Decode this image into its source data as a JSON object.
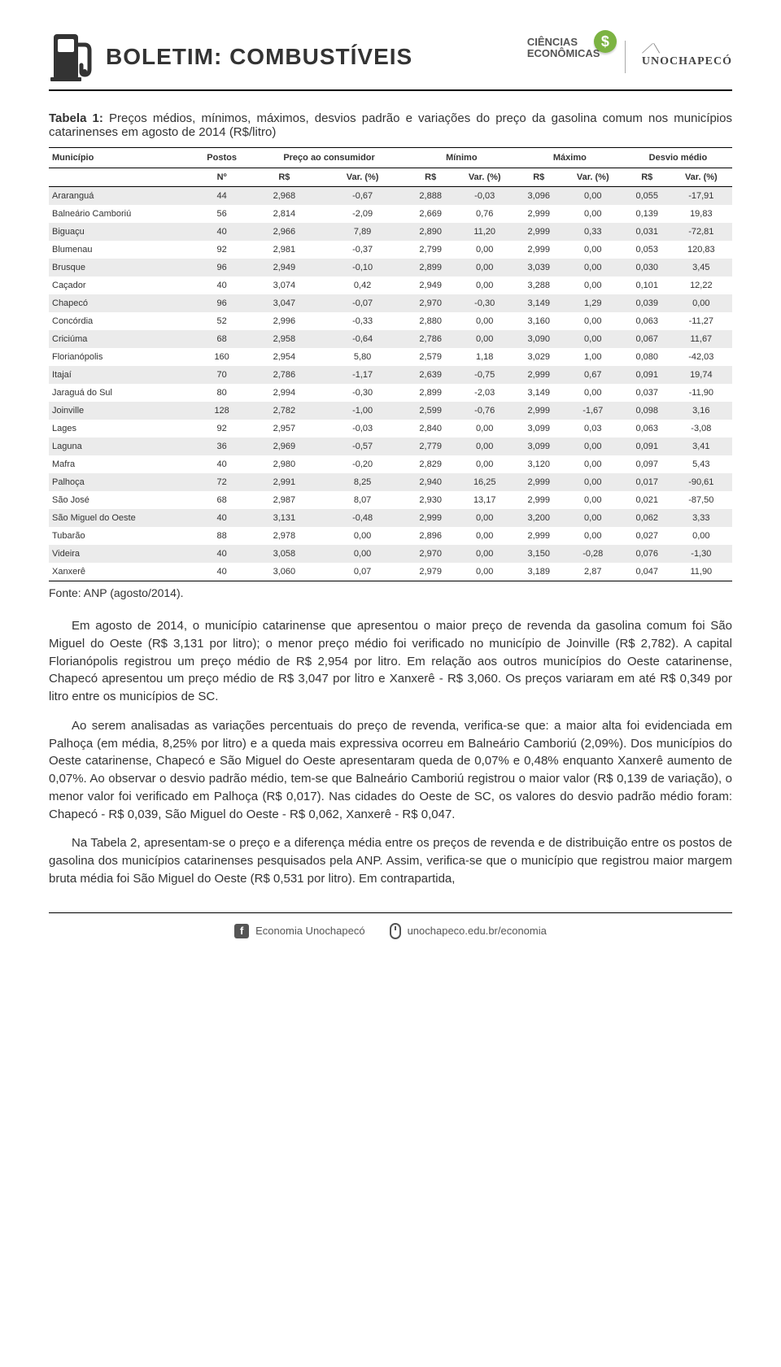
{
  "header": {
    "title": "BOLETIM: COMBUSTÍVEIS",
    "logo_ciencias_line1": "CIÊNCIAS",
    "logo_ciencias_line2": "ECONÔMICAS",
    "logo_ciencias_badge": "$",
    "logo_uno_swirl": "⟋⟍",
    "logo_uno_text": "UNOCHAPECÓ"
  },
  "caption": {
    "label": "Tabela 1:",
    "text": " Preços médios, mínimos, máximos, desvios padrão e variações do preço da gasolina comum nos municípios catarinenses em agosto de 2014 (R$/litro)"
  },
  "table": {
    "group_headers": [
      "Município",
      "Postos",
      "Preço ao consumidor",
      "Mínimo",
      "Máximo",
      "Desvio médio"
    ],
    "sub_headers": [
      "",
      "Nº",
      "R$",
      "Var. (%)",
      "R$",
      "Var. (%)",
      "R$",
      "Var. (%)",
      "R$",
      "Var. (%)"
    ],
    "rows": [
      [
        "Araranguá",
        "44",
        "2,968",
        "-0,67",
        "2,888",
        "-0,03",
        "3,096",
        "0,00",
        "0,055",
        "-17,91"
      ],
      [
        "Balneário Camboriú",
        "56",
        "2,814",
        "-2,09",
        "2,669",
        "0,76",
        "2,999",
        "0,00",
        "0,139",
        "19,83"
      ],
      [
        "Biguaçu",
        "40",
        "2,966",
        "7,89",
        "2,890",
        "11,20",
        "2,999",
        "0,33",
        "0,031",
        "-72,81"
      ],
      [
        "Blumenau",
        "92",
        "2,981",
        "-0,37",
        "2,799",
        "0,00",
        "2,999",
        "0,00",
        "0,053",
        "120,83"
      ],
      [
        "Brusque",
        "96",
        "2,949",
        "-0,10",
        "2,899",
        "0,00",
        "3,039",
        "0,00",
        "0,030",
        "3,45"
      ],
      [
        "Caçador",
        "40",
        "3,074",
        "0,42",
        "2,949",
        "0,00",
        "3,288",
        "0,00",
        "0,101",
        "12,22"
      ],
      [
        "Chapecó",
        "96",
        "3,047",
        "-0,07",
        "2,970",
        "-0,30",
        "3,149",
        "1,29",
        "0,039",
        "0,00"
      ],
      [
        "Concórdia",
        "52",
        "2,996",
        "-0,33",
        "2,880",
        "0,00",
        "3,160",
        "0,00",
        "0,063",
        "-11,27"
      ],
      [
        "Criciúma",
        "68",
        "2,958",
        "-0,64",
        "2,786",
        "0,00",
        "3,090",
        "0,00",
        "0,067",
        "11,67"
      ],
      [
        "Florianópolis",
        "160",
        "2,954",
        "5,80",
        "2,579",
        "1,18",
        "3,029",
        "1,00",
        "0,080",
        "-42,03"
      ],
      [
        "Itajaí",
        "70",
        "2,786",
        "-1,17",
        "2,639",
        "-0,75",
        "2,999",
        "0,67",
        "0,091",
        "19,74"
      ],
      [
        "Jaraguá do Sul",
        "80",
        "2,994",
        "-0,30",
        "2,899",
        "-2,03",
        "3,149",
        "0,00",
        "0,037",
        "-11,90"
      ],
      [
        "Joinville",
        "128",
        "2,782",
        "-1,00",
        "2,599",
        "-0,76",
        "2,999",
        "-1,67",
        "0,098",
        "3,16"
      ],
      [
        "Lages",
        "92",
        "2,957",
        "-0,03",
        "2,840",
        "0,00",
        "3,099",
        "0,03",
        "0,063",
        "-3,08"
      ],
      [
        "Laguna",
        "36",
        "2,969",
        "-0,57",
        "2,779",
        "0,00",
        "3,099",
        "0,00",
        "0,091",
        "3,41"
      ],
      [
        "Mafra",
        "40",
        "2,980",
        "-0,20",
        "2,829",
        "0,00",
        "3,120",
        "0,00",
        "0,097",
        "5,43"
      ],
      [
        "Palhoça",
        "72",
        "2,991",
        "8,25",
        "2,940",
        "16,25",
        "2,999",
        "0,00",
        "0,017",
        "-90,61"
      ],
      [
        "São José",
        "68",
        "2,987",
        "8,07",
        "2,930",
        "13,17",
        "2,999",
        "0,00",
        "0,021",
        "-87,50"
      ],
      [
        "São Miguel do Oeste",
        "40",
        "3,131",
        "-0,48",
        "2,999",
        "0,00",
        "3,200",
        "0,00",
        "0,062",
        "3,33"
      ],
      [
        "Tubarão",
        "88",
        "2,978",
        "0,00",
        "2,896",
        "0,00",
        "2,999",
        "0,00",
        "0,027",
        "0,00"
      ],
      [
        "Videira",
        "40",
        "3,058",
        "0,00",
        "2,970",
        "0,00",
        "3,150",
        "-0,28",
        "0,076",
        "-1,30"
      ],
      [
        "Xanxerê",
        "40",
        "3,060",
        "0,07",
        "2,979",
        "0,00",
        "3,189",
        "2,87",
        "0,047",
        "11,90"
      ]
    ],
    "colors": {
      "row_odd": "#ebebeb",
      "row_even": "#ffffff",
      "border": "#000000"
    }
  },
  "source": "Fonte: ANP (agosto/2014).",
  "paragraphs": [
    "Em agosto de 2014, o município catarinense que apresentou o maior preço de revenda da gasolina comum foi São Miguel do Oeste (R$ 3,131 por litro); o menor preço médio foi verificado no município de Joinville (R$ 2,782). A capital Florianópolis registrou um preço médio de R$ 2,954 por litro. Em relação aos outros municípios do Oeste catarinense, Chapecó apresentou um preço médio de R$ 3,047 por litro e Xanxerê - R$ 3,060. Os preços variaram em até R$ 0,349 por litro entre os municípios de SC.",
    "Ao serem analisadas as variações percentuais do preço de revenda, verifica-se que: a maior alta foi evidenciada em Palhoça (em média, 8,25% por litro) e a queda mais expressiva ocorreu em Balneário Camboriú (2,09%). Dos municípios do Oeste catarinense, Chapecó e São Miguel do Oeste apresentaram queda de 0,07% e 0,48% enquanto Xanxerê aumento de 0,07%. Ao observar o desvio padrão médio, tem-se que Balneário Camboriú registrou o maior valor (R$ 0,139 de variação), o menor valor foi verificado em Palhoça (R$ 0,017). Nas cidades do Oeste de SC, os valores do desvio padrão médio foram: Chapecó - R$ 0,039, São Miguel do Oeste - R$ 0,062, Xanxerê - R$ 0,047.",
    "Na Tabela 2, apresentam-se o preço e a diferença média entre os preços de revenda e de distribuição entre os postos de gasolina dos municípios catarinenses pesquisados pela ANP. Assim, verifica-se que o município que registrou maior margem bruta média foi São Miguel do Oeste (R$ 0,531 por litro). Em contrapartida,"
  ],
  "footer": {
    "facebook_label": "Economia Unochapecó",
    "site_label": "unochapeco.edu.br/economia"
  }
}
